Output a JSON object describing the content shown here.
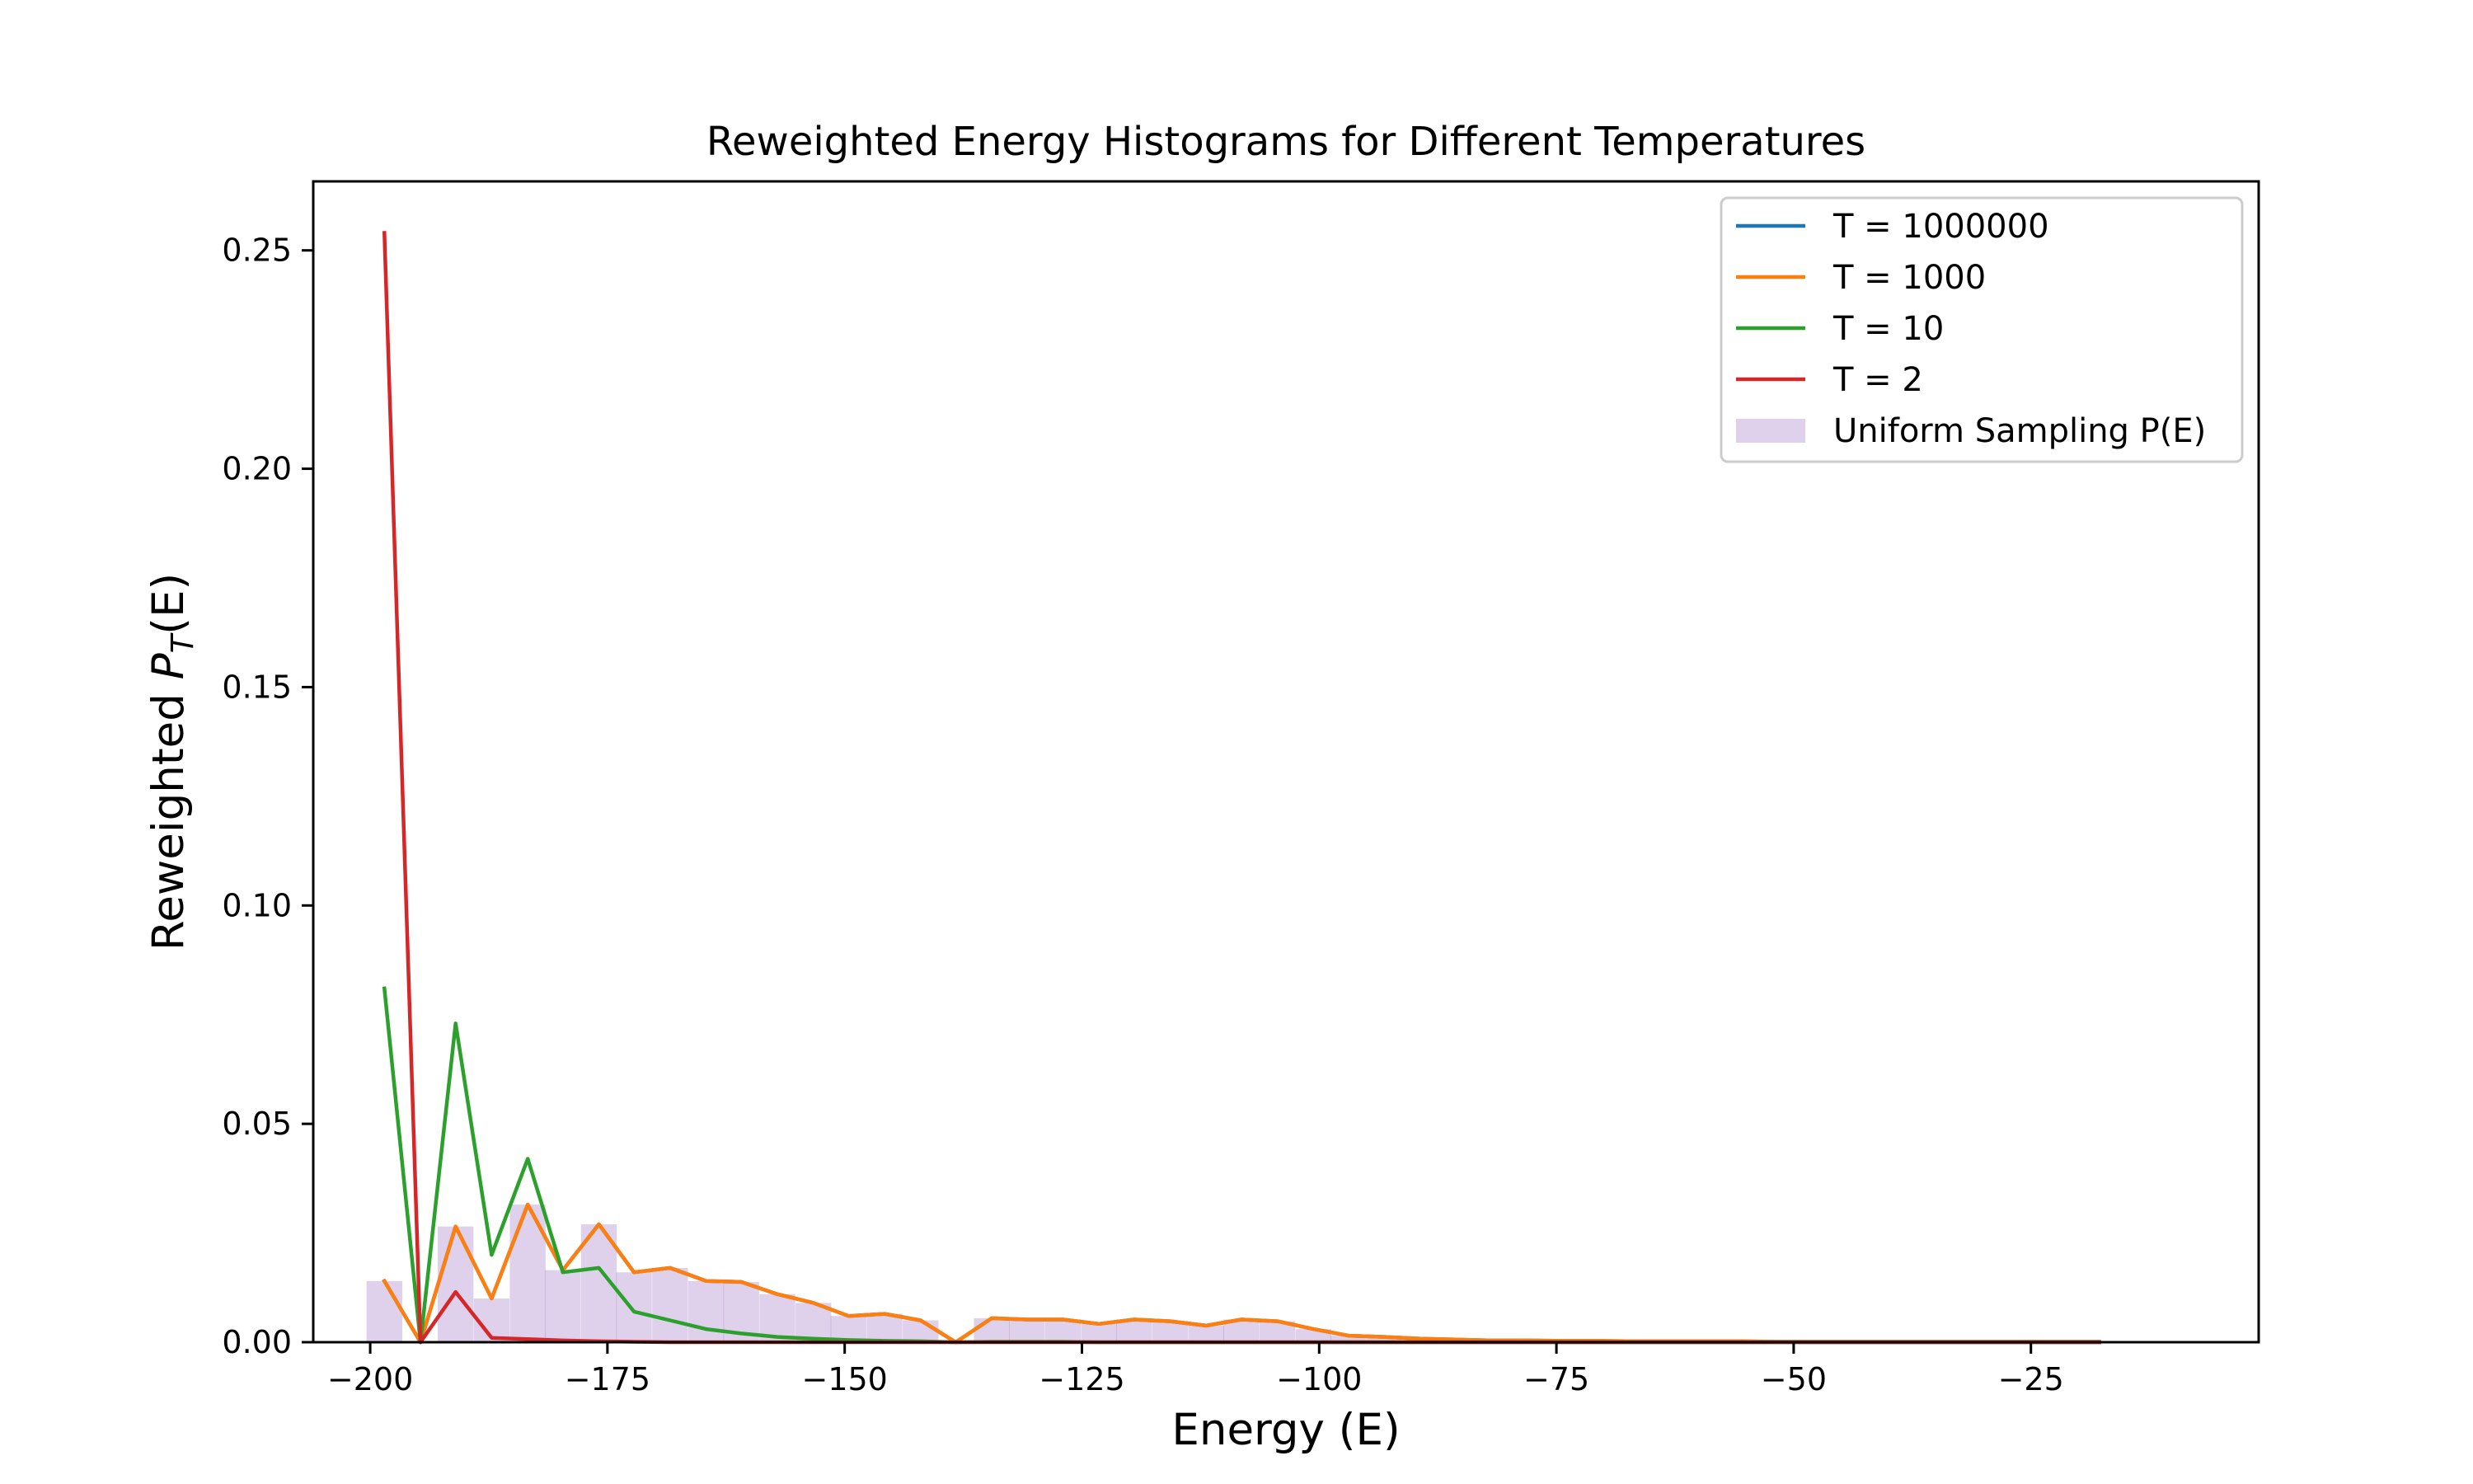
{
  "chart_data": {
    "type": "line",
    "title": "Reweighted Energy Histograms for Different Temperatures",
    "xlabel": "Energy (E)",
    "ylabel": {
      "prefix": "Reweighted ",
      "symbol": "P",
      "subscript": "T",
      "suffix": "(E)"
    },
    "xlim": [
      -206,
      -1
    ],
    "ylim": [
      0,
      0.2658
    ],
    "xticks": [
      -200,
      -175,
      -150,
      -125,
      -100,
      -75,
      -50,
      -25
    ],
    "xtick_labels": [
      "−200",
      "−175",
      "−150",
      "−125",
      "−100",
      "−75",
      "−50",
      "−25"
    ],
    "yticks": [
      0.0,
      0.05,
      0.1,
      0.15,
      0.2,
      0.25
    ],
    "ytick_labels": [
      "0.00",
      "0.05",
      "0.10",
      "0.15",
      "0.20",
      "0.25"
    ],
    "grid": false,
    "legend_position": "top-right",
    "series": [
      {
        "name": "T = 1000000",
        "color": "#1f77b4",
        "x": [
          -198.5,
          -194.7,
          -191.0,
          -187.2,
          -183.4,
          -179.7,
          -175.9,
          -172.2,
          -168.4,
          -164.6,
          -160.9,
          -157.1,
          -153.3,
          -149.6,
          -145.8,
          -142.0,
          -138.3,
          -134.5,
          -130.8,
          -127.0,
          -123.2,
          -119.5,
          -115.7,
          -111.9,
          -108.2,
          -104.4,
          -100.6,
          -96.9,
          -93.1,
          -89.3,
          -85.6,
          -81.8,
          -78.1,
          -74.3,
          -70.5,
          -66.8,
          -63.0,
          -59.2,
          -55.5,
          -51.7,
          -47.9,
          -44.2,
          -40.4,
          -36.7,
          -32.9,
          -29.1,
          -25.4,
          -21.6,
          -17.8
        ],
        "values": [
          0.014,
          0.0,
          0.0265,
          0.01,
          0.0315,
          0.0165,
          0.027,
          0.016,
          0.017,
          0.014,
          0.0138,
          0.011,
          0.009,
          0.006,
          0.0065,
          0.005,
          0.0,
          0.0055,
          0.0052,
          0.0052,
          0.0042,
          0.0052,
          0.0048,
          0.0038,
          0.0052,
          0.0048,
          0.003,
          0.0015,
          0.0012,
          0.0008,
          0.0006,
          0.0004,
          0.0004,
          0.0003,
          0.0003,
          0.0002,
          0.0002,
          0.0002,
          0.0002,
          0.0001,
          0.0001,
          0.0001,
          0.0001,
          0.0001,
          0.0001,
          0.0001,
          0.0001,
          0.0001,
          0.0001
        ]
      },
      {
        "name": "T = 1000",
        "color": "#ff7f0e",
        "x": [
          -198.5,
          -194.7,
          -191.0,
          -187.2,
          -183.4,
          -179.7,
          -175.9,
          -172.2,
          -168.4,
          -164.6,
          -160.9,
          -157.1,
          -153.3,
          -149.6,
          -145.8,
          -142.0,
          -138.3,
          -134.5,
          -130.8,
          -127.0,
          -123.2,
          -119.5,
          -115.7,
          -111.9,
          -108.2,
          -104.4,
          -100.6,
          -96.9,
          -93.1,
          -89.3,
          -85.6,
          -81.8,
          -78.1,
          -74.3,
          -70.5,
          -66.8,
          -63.0,
          -59.2,
          -55.5,
          -51.7,
          -47.9,
          -44.2,
          -40.4,
          -36.7,
          -32.9,
          -29.1,
          -25.4,
          -21.6,
          -17.8
        ],
        "values": [
          0.014,
          0.0,
          0.0265,
          0.01,
          0.0315,
          0.0165,
          0.027,
          0.016,
          0.017,
          0.014,
          0.0138,
          0.011,
          0.009,
          0.006,
          0.0065,
          0.005,
          0.0,
          0.0055,
          0.0052,
          0.0052,
          0.0042,
          0.0052,
          0.0048,
          0.0038,
          0.0052,
          0.0048,
          0.003,
          0.0015,
          0.0012,
          0.0008,
          0.0006,
          0.0004,
          0.0004,
          0.0003,
          0.0003,
          0.0002,
          0.0002,
          0.0002,
          0.0002,
          0.0001,
          0.0001,
          0.0001,
          0.0001,
          0.0001,
          0.0001,
          0.0001,
          0.0001,
          0.0001,
          0.0001
        ]
      },
      {
        "name": "T = 10",
        "color": "#2ca02c",
        "x": [
          -198.5,
          -194.7,
          -191.0,
          -187.2,
          -183.4,
          -179.7,
          -175.9,
          -172.2,
          -168.4,
          -164.6,
          -160.9,
          -157.1,
          -153.3,
          -149.6,
          -145.8,
          -142.0,
          -138.3,
          -134.5,
          -130.8,
          -127.0,
          -123.2,
          -119.5,
          -115.7,
          -111.9,
          -108.2,
          -104.4,
          -100.6,
          -96.9,
          -93.1,
          -89.3,
          -85.6,
          -81.8,
          -78.1,
          -74.3,
          -70.5,
          -66.8,
          -63.0,
          -59.2,
          -55.5,
          -51.7,
          -47.9,
          -44.2,
          -40.4,
          -36.7,
          -32.9,
          -29.1,
          -25.4,
          -21.6,
          -17.8
        ],
        "values": [
          0.081,
          0.0,
          0.073,
          0.02,
          0.042,
          0.016,
          0.017,
          0.007,
          0.005,
          0.003,
          0.002,
          0.0012,
          0.0008,
          0.0005,
          0.0003,
          0.0002,
          0.0,
          0.0001,
          0.0001,
          0.0001,
          0.0,
          0.0,
          0.0,
          0.0,
          0.0,
          0.0,
          0.0,
          0.0,
          0.0,
          0.0,
          0.0,
          0.0,
          0.0,
          0.0,
          0.0,
          0.0,
          0.0,
          0.0,
          0.0,
          0.0,
          0.0,
          0.0,
          0.0,
          0.0,
          0.0,
          0.0,
          0.0,
          0.0,
          0.0
        ]
      },
      {
        "name": "T = 2",
        "color": "#d62728",
        "x": [
          -198.5,
          -194.7,
          -191.0,
          -187.2,
          -183.4,
          -179.7,
          -175.9,
          -172.2,
          -168.4,
          -164.6,
          -160.9,
          -157.1,
          -153.3,
          -149.6,
          -145.8,
          -142.0,
          -138.3,
          -134.5,
          -130.8,
          -127.0,
          -123.2,
          -119.5,
          -115.7,
          -111.9,
          -108.2,
          -104.4,
          -100.6,
          -96.9,
          -93.1,
          -89.3,
          -85.6,
          -81.8,
          -78.1,
          -74.3,
          -70.5,
          -66.8,
          -63.0,
          -59.2,
          -55.5,
          -51.7,
          -47.9,
          -44.2,
          -40.4,
          -36.7,
          -32.9,
          -29.1,
          -25.4,
          -21.6,
          -17.8
        ],
        "values": [
          0.254,
          0.0,
          0.0115,
          0.001,
          0.0007,
          0.0004,
          0.0002,
          0.0001,
          0.0,
          0.0,
          0.0,
          0.0,
          0.0,
          0.0,
          0.0,
          0.0,
          0.0,
          0.0,
          0.0,
          0.0,
          0.0,
          0.0,
          0.0,
          0.0,
          0.0,
          0.0,
          0.0,
          0.0,
          0.0,
          0.0,
          0.0,
          0.0,
          0.0,
          0.0,
          0.0,
          0.0,
          0.0,
          0.0,
          0.0,
          0.0,
          0.0,
          0.0,
          0.0,
          0.0,
          0.0,
          0.0,
          0.0,
          0.0,
          0.0
        ]
      }
    ],
    "histogram": {
      "name": "Uniform Sampling P(E)",
      "color": "#9467bd",
      "opacity": 0.3,
      "bin_width": 3.77,
      "x": [
        -198.5,
        -194.7,
        -191.0,
        -187.2,
        -183.4,
        -179.7,
        -175.9,
        -172.2,
        -168.4,
        -164.6,
        -160.9,
        -157.1,
        -153.3,
        -149.6,
        -145.8,
        -142.0,
        -138.3,
        -134.5,
        -130.8,
        -127.0,
        -123.2,
        -119.5,
        -115.7,
        -111.9,
        -108.2,
        -104.4,
        -100.6,
        -96.9,
        -93.1,
        -89.3,
        -85.6,
        -81.8,
        -78.1,
        -74.3,
        -70.5,
        -66.8,
        -63.0,
        -59.2,
        -55.5,
        -51.7,
        -47.9,
        -44.2,
        -40.4,
        -36.7,
        -32.9,
        -29.1,
        -25.4,
        -21.6,
        -17.8
      ],
      "values": [
        0.014,
        0.0,
        0.0265,
        0.01,
        0.0315,
        0.0165,
        0.027,
        0.016,
        0.017,
        0.014,
        0.0138,
        0.011,
        0.009,
        0.006,
        0.0065,
        0.005,
        0.0,
        0.0055,
        0.0052,
        0.0052,
        0.0042,
        0.0052,
        0.0048,
        0.0038,
        0.0052,
        0.0048,
        0.003,
        0.0015,
        0.0012,
        0.0008,
        0.0006,
        0.0004,
        0.0004,
        0.0003,
        0.0003,
        0.0002,
        0.0002,
        0.0002,
        0.0002,
        0.0001,
        0.0001,
        0.0001,
        0.0001,
        0.0001,
        0.0001,
        0.0001,
        0.0001,
        0.0001,
        0.0001
      ]
    }
  }
}
